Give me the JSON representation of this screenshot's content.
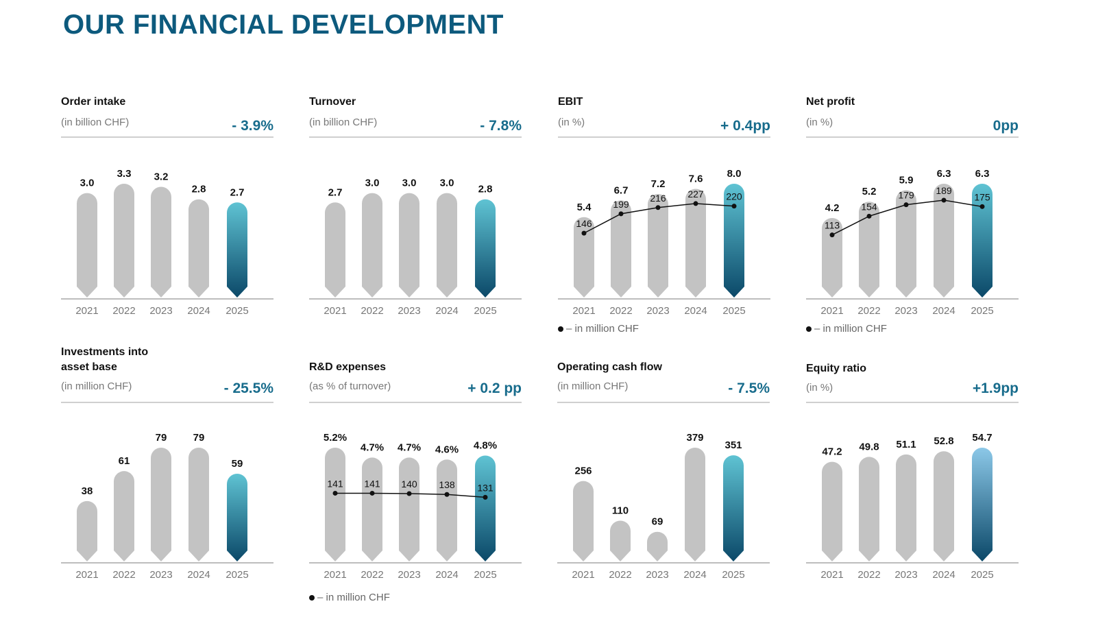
{
  "page": {
    "title": "OUR FINANCIAL DEVELOPMENT"
  },
  "colors": {
    "title": "#0d5a7d",
    "change": "#186c8c",
    "bar_gray": "#c3c3c3",
    "bar_grad_top": "#5fc3d3",
    "bar_grad_top_light": "#8cc8e8",
    "bar_grad_bottom": "#0b4868",
    "axis": "#bdbdbd"
  },
  "legend_text": "– in million CHF",
  "chart_data": [
    {
      "id": "order-intake",
      "type": "bar",
      "title": "Order intake",
      "subtitle": "(in billion CHF)",
      "change": "- 3.9%",
      "categories": [
        "2021",
        "2022",
        "2023",
        "2024",
        "2025"
      ],
      "values": [
        3.0,
        3.3,
        3.2,
        2.8,
        2.7
      ],
      "labels": [
        "3.0",
        "3.3",
        "3.2",
        "2.8",
        "2.7"
      ],
      "ylim": [
        0,
        3.3
      ],
      "highlight_last": true
    },
    {
      "id": "turnover",
      "type": "bar",
      "title": "Turnover",
      "subtitle": "(in billion CHF)",
      "change": "- 7.8%",
      "categories": [
        "2021",
        "2022",
        "2023",
        "2024",
        "2025"
      ],
      "values": [
        2.7,
        3.0,
        3.0,
        3.0,
        2.8
      ],
      "labels": [
        "2.7",
        "3.0",
        "3.0",
        "3.0",
        "2.8"
      ],
      "ylim": [
        0,
        3.3
      ],
      "highlight_last": true
    },
    {
      "id": "ebit",
      "type": "bar",
      "title": "EBIT",
      "subtitle": "(in %)",
      "change": "+ 0.4pp",
      "categories": [
        "2021",
        "2022",
        "2023",
        "2024",
        "2025"
      ],
      "values": [
        5.4,
        6.7,
        7.2,
        7.6,
        8.0
      ],
      "labels": [
        "5.4",
        "6.7",
        "7.2",
        "7.6",
        "8.0"
      ],
      "ylim": [
        0,
        8.0
      ],
      "line": {
        "name": "in million CHF",
        "values": [
          146,
          199,
          216,
          227,
          220
        ],
        "labels": [
          "146",
          "199",
          "216",
          "227",
          "220"
        ],
        "ylim": [
          0,
          300
        ]
      },
      "legend": true,
      "highlight_last": true
    },
    {
      "id": "net-profit",
      "type": "bar",
      "title": "Net profit",
      "subtitle": "(in %)",
      "change": "0pp",
      "categories": [
        "2021",
        "2022",
        "2023",
        "2024",
        "2025"
      ],
      "values": [
        4.2,
        5.2,
        5.9,
        6.3,
        6.3
      ],
      "labels": [
        "4.2",
        "5.2",
        "5.9",
        "6.3",
        "6.3"
      ],
      "ylim": [
        0,
        6.3
      ],
      "line": {
        "name": "in million CHF",
        "values": [
          113,
          154,
          179,
          189,
          175
        ],
        "labels": [
          "113",
          "154",
          "179",
          "189",
          "175"
        ],
        "ylim": [
          0,
          240
        ]
      },
      "legend": true,
      "highlight_last": true
    },
    {
      "id": "investments",
      "type": "bar",
      "title": "Investments into asset base",
      "subtitle": "(in million CHF)",
      "change": "- 25.5%",
      "categories": [
        "2021",
        "2022",
        "2023",
        "2024",
        "2025"
      ],
      "values": [
        38,
        61,
        79,
        79,
        59
      ],
      "labels": [
        "38",
        "61",
        "79",
        "79",
        "59"
      ],
      "ylim": [
        0,
        79
      ],
      "highlight_last": true
    },
    {
      "id": "rd-expenses",
      "type": "bar",
      "title": "R&D expenses",
      "subtitle": "(as % of turnover)",
      "change": "+ 0.2 pp",
      "categories": [
        "2021",
        "2022",
        "2023",
        "2024",
        "2025"
      ],
      "values": [
        5.2,
        4.7,
        4.7,
        4.6,
        4.8
      ],
      "labels": [
        "5.2%",
        "4.7%",
        "4.7%",
        "4.6%",
        "4.8%"
      ],
      "ylim": [
        0,
        5.2
      ],
      "line": {
        "name": "in million CHF",
        "values": [
          141,
          141,
          140,
          138,
          131
        ],
        "labels": [
          "141",
          "141",
          "140",
          "138",
          "131"
        ],
        "ylim": [
          0,
          270
        ]
      },
      "legend": true,
      "highlight_last": true
    },
    {
      "id": "operating-cash-flow",
      "type": "bar",
      "title": "Operating cash flow",
      "subtitle": "(in million CHF)",
      "change": "- 7.5%",
      "categories": [
        "2021",
        "2022",
        "2023",
        "2024",
        "2025"
      ],
      "values": [
        256,
        110,
        69,
        379,
        351
      ],
      "labels": [
        "256",
        "110",
        "69",
        "379",
        "351"
      ],
      "ylim": [
        0,
        379
      ],
      "highlight_last": true
    },
    {
      "id": "equity-ratio",
      "type": "bar",
      "title": "Equity ratio",
      "subtitle": "(in %)",
      "change": "+1.9pp",
      "categories": [
        "2021",
        "2022",
        "2023",
        "2024",
        "2025"
      ],
      "values": [
        47.2,
        49.8,
        51.1,
        52.8,
        54.7
      ],
      "labels": [
        "47.2",
        "49.8",
        "51.1",
        "52.8",
        "54.7"
      ],
      "ylim": [
        0,
        54.7
      ],
      "highlight_last": true
    }
  ]
}
